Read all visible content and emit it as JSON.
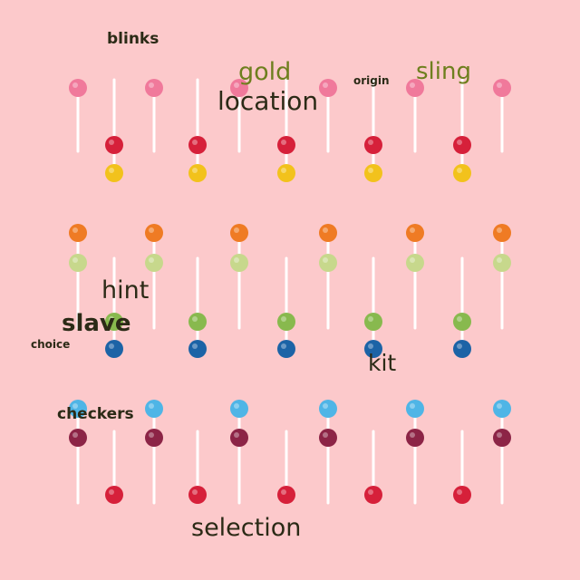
{
  "scene": {
    "background": "#fcc9cb",
    "stick_color": "#ffffff",
    "lollipop_colors": [
      "pink",
      "red",
      "yellow",
      "orange",
      "light-green",
      "green",
      "blue",
      "light-blue",
      "purple",
      "red"
    ]
  },
  "words": {
    "blinks": "blinks",
    "gold": "gold",
    "location": "location",
    "origin": "origin",
    "sling": "sling",
    "hint": "hint",
    "slave": "slave",
    "choice": "choice",
    "kit": "kit",
    "checkers": "checkers",
    "selection": "selection"
  }
}
